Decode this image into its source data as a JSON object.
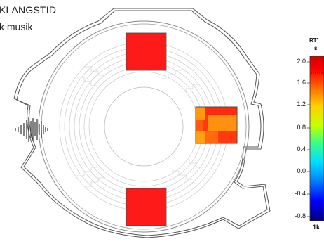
{
  "title": {
    "line1": "KLANGSTID",
    "line2": "k musik"
  },
  "colorbar": {
    "quantity_label": "RT'",
    "unit_label": "s",
    "freq_label": "1k",
    "ticks": [
      "2.0",
      "1.6",
      "1.2",
      "0.8",
      "0.4",
      "0.0",
      "-0.4",
      "-0.8"
    ],
    "tick_values": [
      2.0,
      1.6,
      1.2,
      0.8,
      0.4,
      0.0,
      -0.4,
      -0.8
    ],
    "range": [
      -0.8,
      2.0
    ],
    "colors": [
      "#00007a",
      "#0000ff",
      "#0090ff",
      "#00e0ff",
      "#40ff80",
      "#c8ff00",
      "#ffd000",
      "#ff6000",
      "#ff0000",
      "#d00000"
    ]
  },
  "plan": {
    "areas": [
      {
        "id": "top",
        "color": "#ff1a1a"
      },
      {
        "id": "right",
        "color": "#ff6010",
        "subcells": [
          "#ff9a10",
          "#ff3a10",
          "#ff3a10",
          "#ff9a10",
          "#ff7a10",
          "#ff3a10",
          "#ff3a10",
          "#ff9a10",
          "#ff3a10"
        ]
      },
      {
        "id": "bottom",
        "color": "#ff1a1a"
      }
    ],
    "source_icon": "sound-waveform-icon"
  }
}
